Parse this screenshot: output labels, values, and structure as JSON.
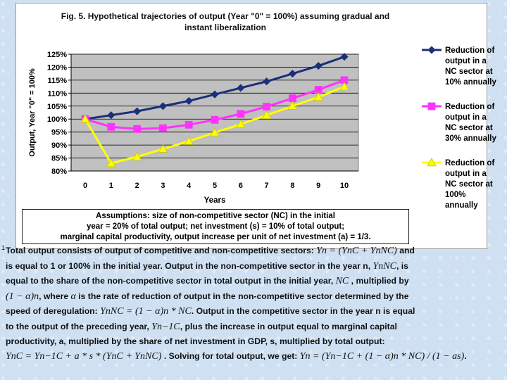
{
  "chart_data": {
    "type": "line",
    "title": "Fig. 5. Hypothetical trajectories of output (Year \"0\" = 100%) assuming gradual and instant liberalization",
    "title_lines": [
      "Fig. 5. Hypothetical trajectories of output (Year \"0\" = 100%) assuming gradual and",
      "instant liberalization"
    ],
    "xlabel": "Years",
    "ylabel": "Output, Year \"0\" = 100%",
    "x": [
      0,
      1,
      2,
      3,
      4,
      5,
      6,
      7,
      8,
      9,
      10
    ],
    "x_tick_labels": [
      "0",
      "1",
      "2",
      "3",
      "4",
      "5",
      "6",
      "7",
      "8",
      "9",
      "10"
    ],
    "ylim": [
      80,
      125
    ],
    "y_tick_values": [
      80,
      85,
      90,
      95,
      100,
      105,
      110,
      115,
      120,
      125
    ],
    "y_tick_labels": [
      "80%",
      "85%",
      "90%",
      "95%",
      "100%",
      "105%",
      "110%",
      "115%",
      "120%",
      "125%"
    ],
    "grid": "horizontal",
    "legend_position": "right",
    "series": [
      {
        "name": "Reduction of output in a NC sector at 10% annually",
        "legend_lines": [
          "Reduction of",
          "output in a",
          "NC sector at",
          "10% annually"
        ],
        "marker": "diamond",
        "color": "#1b2f7a",
        "values": [
          100,
          101.5,
          103,
          105,
          107,
          109.5,
          112,
          114.5,
          117.5,
          120.5,
          124
        ]
      },
      {
        "name": "Reduction of output in a NC sector at 30% annually",
        "legend_lines": [
          "Reduction of",
          "output in a",
          "NC sector at",
          "30% annually"
        ],
        "marker": "square",
        "color": "#ff33ff",
        "values": [
          100,
          97,
          96.2,
          96.5,
          97.8,
          99.7,
          102,
          104.8,
          108,
          111.3,
          115
        ]
      },
      {
        "name": "Reduction of output in a NC sector at 100% annually",
        "legend_lines": [
          "Reduction of",
          "output in a",
          "NC sector at",
          "100%",
          "annually"
        ],
        "marker": "triangle",
        "color": "#ffff00",
        "values": [
          100,
          83,
          85.5,
          88.5,
          91.5,
          94.8,
          98,
          101.5,
          105,
          108.5,
          112.5
        ]
      }
    ],
    "plot_bg": "#c0c0c0"
  },
  "assumptions": {
    "text": "Assumptions: size of non-competitive sector (NC) in the initial\nyear = 20% of total output; net investment (s) = 10% of total output;\nmarginal capital productivity, output increase per unit of net investment (a) = 1/3."
  },
  "footnote_mark": "1",
  "text_lines": [
    {
      "parts": [
        {
          "t": "Total output consists of output of competitive and non-competitive sectors: "
        },
        {
          "t": "Yn = (YnC + YnNC)",
          "m": true
        },
        {
          "t": " and"
        }
      ]
    },
    {
      "parts": [
        {
          "t": "is equal to 1 or 100% in the initial year. Output in the non-competitive sector in the year n, "
        },
        {
          "t": "YnNC",
          "m": true
        },
        {
          "t": ", is"
        }
      ]
    },
    {
      "parts": [
        {
          "t": "equal to the share of the non-competitive sector in total output in the initial year, "
        },
        {
          "t": "NC",
          "m": true
        },
        {
          "t": " , multiplied by"
        }
      ]
    },
    {
      "parts": [
        {
          "t": "(1 − α)n",
          "m": true
        },
        {
          "t": ", where "
        },
        {
          "t": "α",
          "m": true
        },
        {
          "t": " is the rate of reduction of output in the non-competitive sector determined by the"
        }
      ]
    },
    {
      "parts": [
        {
          "t": "speed of deregulation: "
        },
        {
          "t": "YnNC = (1 − α)n * NC",
          "m": true
        },
        {
          "t": ". Output in the competitive sector in the year n is equal"
        }
      ]
    },
    {
      "parts": [
        {
          "t": "to the output of the preceding year, "
        },
        {
          "t": "Yn−1C",
          "m": true
        },
        {
          "t": ", plus the increase in output equal to marginal capital"
        }
      ]
    },
    {
      "parts": [
        {
          "t": "productivity, a, multiplied by the share of net investment in GDP, s, multiplied by total output:"
        }
      ]
    },
    {
      "parts": [
        {
          "t": "YnC = Yn−1C + a * s * (YnC + YnNC)",
          "m": true
        },
        {
          "t": " . Solving for total output, we get: "
        },
        {
          "t": "Yn = (Yn−1C + (1 − α)n * NC) / (1 − as)",
          "m": true
        },
        {
          "t": "."
        }
      ]
    }
  ]
}
